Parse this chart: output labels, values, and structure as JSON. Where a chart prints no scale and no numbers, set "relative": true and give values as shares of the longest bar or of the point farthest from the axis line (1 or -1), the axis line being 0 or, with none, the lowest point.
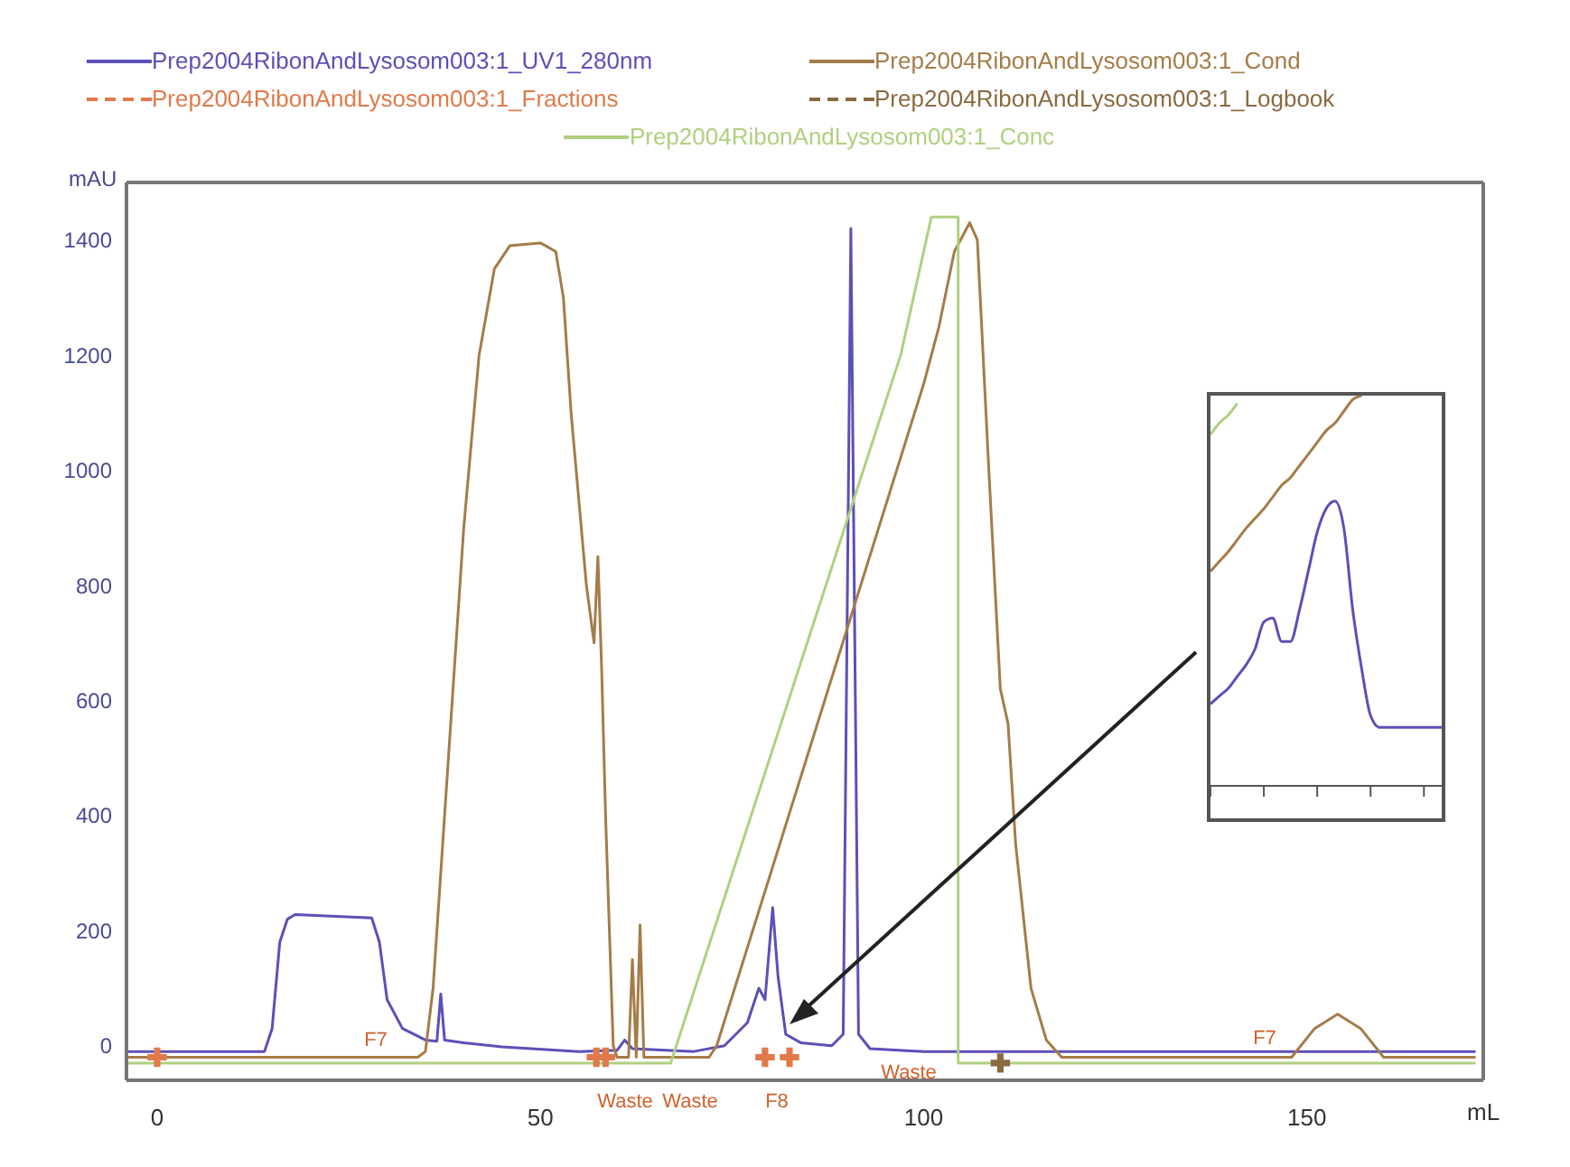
{
  "chart_data": [
    {
      "type": "line",
      "xlabel": "mL",
      "ylabel": "mAU",
      "xlim": [
        -4,
        173
      ],
      "xticks": [
        0,
        50,
        100,
        150
      ],
      "ylim": [
        -60,
        1500
      ],
      "yticks": [
        0,
        200,
        400,
        600,
        800,
        1000,
        1200,
        1400
      ],
      "legend": "top",
      "grid": false,
      "series": [
        {
          "name": "Prep2004RibonAndLysosom003:1_UV1_280nm",
          "color": "#5b50b8",
          "x": [
            -4,
            14,
            15,
            16,
            17,
            18,
            28,
            29,
            30,
            32,
            35,
            36.5,
            37,
            37.5,
            40,
            45,
            55,
            60,
            61,
            62,
            70,
            74,
            77,
            78.5,
            79.3,
            80.3,
            81,
            82,
            84,
            88,
            89.5,
            90.5,
            91.5,
            93,
            100,
            172
          ],
          "values": [
            -10,
            -10,
            30,
            180,
            220,
            228,
            222,
            180,
            80,
            30,
            10,
            8,
            90,
            10,
            5,
            -2,
            -10,
            -8,
            10,
            -5,
            -10,
            0,
            40,
            100,
            80,
            240,
            120,
            20,
            5,
            0,
            20,
            1420,
            20,
            -5,
            -10,
            -10
          ]
        },
        {
          "name": "Prep2004RibonAndLysosom003:1_Cond",
          "color": "#a57c48",
          "x": [
            -4,
            34,
            35,
            36,
            38,
            40,
            42,
            44,
            46,
            50,
            52,
            53,
            54,
            56,
            57,
            57.5,
            58,
            58.5,
            59.5,
            60,
            61.5,
            62,
            62.5,
            63,
            63.5,
            72,
            73,
            100,
            102,
            104,
            106,
            107,
            108.5,
            110,
            111,
            112,
            114,
            116,
            118,
            148,
            151,
            154,
            157,
            160,
            172
          ],
          "values": [
            -20,
            -20,
            -10,
            100,
            500,
            900,
            1200,
            1350,
            1390,
            1395,
            1380,
            1300,
            1100,
            800,
            700,
            850,
            650,
            400,
            0,
            -20,
            -20,
            150,
            -20,
            210,
            -20,
            -20,
            0,
            1150,
            1250,
            1380,
            1430,
            1400,
            1000,
            620,
            560,
            350,
            100,
            10,
            -20,
            -20,
            30,
            55,
            30,
            -20,
            -20
          ]
        },
        {
          "name": "Prep2004RibonAndLysosom003:1_Fractions",
          "color": "#e07a4a",
          "type": "scatter",
          "marker": "cross",
          "line_style": "dashed",
          "x": [
            0,
            57.3,
            58.5,
            79.3,
            82.5
          ],
          "values": [
            -20,
            -20,
            -20,
            -20,
            -20
          ]
        },
        {
          "name": "Prep2004RibonAndLysosom003:1_Logbook",
          "color": "#8a6a40",
          "type": "scatter",
          "marker": "cross",
          "line_style": "dashed",
          "x": [
            110
          ],
          "values": [
            -30
          ]
        },
        {
          "name": "Prep2004RibonAndLysosom003:1_Conc",
          "color": "#b0d080",
          "x": [
            -4,
            67,
            97,
            101,
            101,
            104.5,
            104.5,
            172
          ],
          "values": [
            -30,
            -30,
            1200,
            1440,
            1440,
            1440,
            -30,
            -30
          ]
        }
      ],
      "annotations": [
        "F7",
        "Waste",
        "Waste",
        "F8",
        "Waste",
        "F7"
      ]
    },
    {
      "type": "line",
      "relative": true,
      "categories": [
        null,
        null,
        null,
        null,
        null,
        null,
        null,
        null,
        null,
        null,
        null,
        null,
        null,
        null,
        null,
        null,
        null,
        null,
        null,
        null,
        null,
        null,
        null,
        null,
        null,
        null,
        null
      ],
      "series": [
        {
          "color": "#b0d080",
          "values": [
            0.9,
            0.93,
            0.95,
            0.98,
            null,
            null,
            null,
            null,
            null,
            null,
            null,
            null,
            null,
            null,
            null,
            null,
            null,
            null,
            null,
            null,
            null,
            null,
            null,
            null,
            null,
            null,
            null
          ]
        },
        {
          "color": "#a57c48",
          "values": [
            0.55,
            0.575,
            0.6,
            0.63,
            0.66,
            0.685,
            0.71,
            0.74,
            0.77,
            0.79,
            0.82,
            0.85,
            0.88,
            0.91,
            0.93,
            0.96,
            0.99,
            1.0,
            null,
            null,
            null,
            null,
            null,
            null,
            null,
            null,
            null
          ]
        },
        {
          "color": "#5b50b8",
          "values": [
            0.21,
            0.23,
            0.25,
            0.28,
            0.31,
            0.35,
            0.42,
            0.43,
            0.37,
            0.37,
            0.45,
            0.55,
            0.65,
            0.71,
            0.73,
            0.66,
            0.45,
            0.3,
            0.18,
            0.15,
            0.15,
            0.15,
            0.15,
            0.15,
            0.15,
            0.15,
            0.15
          ]
        }
      ]
    }
  ]
}
